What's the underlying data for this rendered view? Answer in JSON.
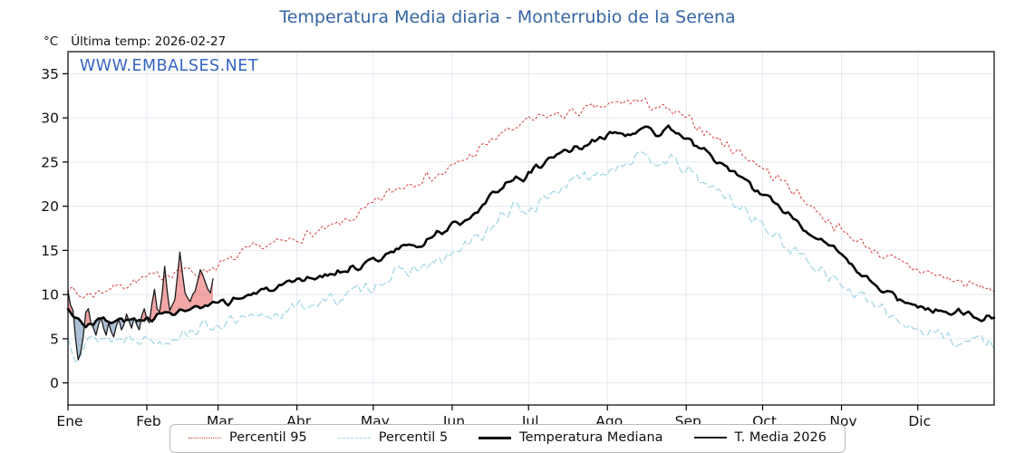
{
  "header": {
    "title": "Temperatura Media diaria - Monterrubio de la Serena",
    "unit": "°C",
    "last_temp": "Última temp: 2026-02-27"
  },
  "watermark": "WWW.EMBALSES.NET",
  "colors": {
    "title": "#3465a4",
    "watermark": "#3465c4",
    "grid": "#e3eaf1",
    "axis": "#000000",
    "fill_above_median": "rgba(232,93,93,0.55)",
    "fill_below_median": "rgba(105,140,180,0.55)"
  },
  "chart_data": {
    "type": "line",
    "title": "Temperatura Media diaria - Monterrubio de la Serena",
    "xlabel": "",
    "ylabel": "°C",
    "ylim": [
      -2.5,
      37.5
    ],
    "y_ticks": [
      0,
      5,
      10,
      15,
      20,
      25,
      30,
      35
    ],
    "x_unit": "day_of_year",
    "x_range_days": [
      1,
      365
    ],
    "x_tick_days": [
      1,
      32,
      60,
      91,
      121,
      152,
      182,
      213,
      244,
      274,
      305,
      335
    ],
    "x_tick_labels": [
      "Ene",
      "Feb",
      "Mar",
      "Abr",
      "May",
      "Jun",
      "Jul",
      "Ago",
      "Sep",
      "Oct",
      "Nov",
      "Dic"
    ],
    "grid": true,
    "legend_position": "bottom",
    "annotation": "Última temp: 2026-02-27",
    "series": [
      {
        "name": "Percentil 95",
        "color": "#d93a3a",
        "line_style": "dotted",
        "days": 365,
        "control_points": [
          [
            1,
            10.8
          ],
          [
            6,
            9.8
          ],
          [
            12,
            10.2
          ],
          [
            18,
            10.8
          ],
          [
            24,
            11.2
          ],
          [
            31,
            11.8
          ],
          [
            38,
            12.2
          ],
          [
            45,
            12.8
          ],
          [
            52,
            12.4
          ],
          [
            59,
            13.2
          ],
          [
            66,
            14.0
          ],
          [
            73,
            15.2
          ],
          [
            80,
            15.6
          ],
          [
            87,
            16.0
          ],
          [
            94,
            16.6
          ],
          [
            101,
            17.2
          ],
          [
            108,
            18.0
          ],
          [
            115,
            19.0
          ],
          [
            120,
            20.0
          ],
          [
            127,
            21.5
          ],
          [
            134,
            22.5
          ],
          [
            141,
            23.2
          ],
          [
            148,
            23.6
          ],
          [
            155,
            25.0
          ],
          [
            162,
            26.2
          ],
          [
            169,
            27.8
          ],
          [
            176,
            28.8
          ],
          [
            182,
            29.6
          ],
          [
            189,
            30.2
          ],
          [
            196,
            30.4
          ],
          [
            203,
            30.8
          ],
          [
            210,
            31.2
          ],
          [
            217,
            31.6
          ],
          [
            224,
            32.0
          ],
          [
            228,
            31.6
          ],
          [
            235,
            31.0
          ],
          [
            242,
            30.2
          ],
          [
            249,
            29.0
          ],
          [
            256,
            27.6
          ],
          [
            263,
            26.4
          ],
          [
            270,
            25.2
          ],
          [
            277,
            23.6
          ],
          [
            284,
            22.4
          ],
          [
            291,
            20.6
          ],
          [
            298,
            18.8
          ],
          [
            305,
            17.2
          ],
          [
            312,
            16.0
          ],
          [
            319,
            14.8
          ],
          [
            326,
            13.8
          ],
          [
            333,
            13.0
          ],
          [
            340,
            12.4
          ],
          [
            347,
            11.8
          ],
          [
            354,
            11.2
          ],
          [
            360,
            10.8
          ],
          [
            365,
            10.6
          ]
        ]
      },
      {
        "name": "Percentil 5",
        "color": "#a5d8e6",
        "line_style": "dashed",
        "days": 365,
        "control_points": [
          [
            1,
            5.2
          ],
          [
            4,
            3.2
          ],
          [
            8,
            4.6
          ],
          [
            14,
            5.2
          ],
          [
            20,
            4.8
          ],
          [
            26,
            5.4
          ],
          [
            31,
            5.0
          ],
          [
            38,
            4.6
          ],
          [
            45,
            5.6
          ],
          [
            52,
            6.2
          ],
          [
            59,
            6.6
          ],
          [
            66,
            6.9
          ],
          [
            73,
            7.2
          ],
          [
            80,
            7.6
          ],
          [
            87,
            8.2
          ],
          [
            94,
            8.8
          ],
          [
            101,
            9.2
          ],
          [
            108,
            9.6
          ],
          [
            115,
            10.4
          ],
          [
            122,
            11.2
          ],
          [
            129,
            12.2
          ],
          [
            136,
            12.8
          ],
          [
            143,
            13.2
          ],
          [
            150,
            14.2
          ],
          [
            157,
            15.4
          ],
          [
            164,
            16.8
          ],
          [
            171,
            18.6
          ],
          [
            176,
            19.8
          ],
          [
            182,
            19.4
          ],
          [
            189,
            21.0
          ],
          [
            196,
            22.4
          ],
          [
            203,
            23.2
          ],
          [
            210,
            23.8
          ],
          [
            217,
            24.6
          ],
          [
            224,
            25.6
          ],
          [
            229,
            25.0
          ],
          [
            236,
            25.4
          ],
          [
            243,
            24.2
          ],
          [
            250,
            22.8
          ],
          [
            257,
            21.6
          ],
          [
            264,
            20.2
          ],
          [
            271,
            18.6
          ],
          [
            278,
            16.8
          ],
          [
            285,
            15.2
          ],
          [
            292,
            13.8
          ],
          [
            299,
            12.6
          ],
          [
            306,
            10.8
          ],
          [
            313,
            9.6
          ],
          [
            320,
            8.4
          ],
          [
            327,
            7.2
          ],
          [
            334,
            6.2
          ],
          [
            341,
            5.6
          ],
          [
            348,
            5.2
          ],
          [
            353,
            4.2
          ],
          [
            358,
            5.4
          ],
          [
            365,
            4.0
          ]
        ]
      },
      {
        "name": "Temperatura Mediana",
        "color": "#000000",
        "line_style": "solid-thick",
        "days": 365,
        "control_points": [
          [
            1,
            8.6
          ],
          [
            4,
            7.4
          ],
          [
            8,
            6.6
          ],
          [
            13,
            7.2
          ],
          [
            18,
            6.8
          ],
          [
            23,
            7.2
          ],
          [
            28,
            6.9
          ],
          [
            31,
            7.3
          ],
          [
            38,
            7.7
          ],
          [
            45,
            8.1
          ],
          [
            52,
            8.4
          ],
          [
            59,
            8.8
          ],
          [
            66,
            9.4
          ],
          [
            73,
            10.0
          ],
          [
            80,
            10.6
          ],
          [
            87,
            11.0
          ],
          [
            94,
            11.6
          ],
          [
            101,
            12.1
          ],
          [
            108,
            12.6
          ],
          [
            115,
            13.2
          ],
          [
            122,
            14.0
          ],
          [
            129,
            14.8
          ],
          [
            134,
            15.8
          ],
          [
            139,
            15.4
          ],
          [
            145,
            16.8
          ],
          [
            150,
            17.6
          ],
          [
            155,
            18.2
          ],
          [
            160,
            19.2
          ],
          [
            165,
            20.4
          ],
          [
            170,
            21.8
          ],
          [
            175,
            23.2
          ],
          [
            180,
            23.0
          ],
          [
            185,
            24.6
          ],
          [
            190,
            25.2
          ],
          [
            196,
            26.0
          ],
          [
            203,
            26.8
          ],
          [
            210,
            27.6
          ],
          [
            215,
            28.2
          ],
          [
            222,
            28.0
          ],
          [
            227,
            28.8
          ],
          [
            232,
            28.2
          ],
          [
            237,
            28.8
          ],
          [
            243,
            27.8
          ],
          [
            249,
            26.6
          ],
          [
            255,
            25.4
          ],
          [
            261,
            24.2
          ],
          [
            267,
            22.6
          ],
          [
            273,
            21.6
          ],
          [
            279,
            20.4
          ],
          [
            285,
            19.0
          ],
          [
            291,
            17.4
          ],
          [
            297,
            16.2
          ],
          [
            303,
            14.8
          ],
          [
            309,
            13.2
          ],
          [
            315,
            11.8
          ],
          [
            321,
            10.6
          ],
          [
            327,
            9.6
          ],
          [
            333,
            8.8
          ],
          [
            339,
            8.4
          ],
          [
            345,
            8.0
          ],
          [
            351,
            8.3
          ],
          [
            357,
            7.6
          ],
          [
            362,
            7.4
          ],
          [
            365,
            7.8
          ]
        ]
      },
      {
        "name": "T. Media 2026",
        "color": "#1c1c1c",
        "line_style": "solid-thin",
        "days": 58,
        "control_points": [
          [
            1,
            10.4
          ],
          [
            2,
            8.8
          ],
          [
            3,
            8.2
          ],
          [
            4,
            5.0
          ],
          [
            5,
            2.6
          ],
          [
            6,
            3.4
          ],
          [
            7,
            5.2
          ],
          [
            8,
            8.0
          ],
          [
            9,
            8.4
          ],
          [
            10,
            6.8
          ],
          [
            11,
            6.2
          ],
          [
            12,
            5.4
          ],
          [
            13,
            6.6
          ],
          [
            14,
            7.4
          ],
          [
            15,
            6.2
          ],
          [
            16,
            5.4
          ],
          [
            17,
            6.8
          ],
          [
            18,
            5.8
          ],
          [
            19,
            5.2
          ],
          [
            20,
            6.4
          ],
          [
            21,
            7.2
          ],
          [
            22,
            6.0
          ],
          [
            23,
            6.6
          ],
          [
            24,
            7.8
          ],
          [
            25,
            7.0
          ],
          [
            26,
            6.2
          ],
          [
            27,
            7.4
          ],
          [
            28,
            6.6
          ],
          [
            29,
            6.0
          ],
          [
            30,
            7.6
          ],
          [
            31,
            8.4
          ],
          [
            32,
            7.2
          ],
          [
            33,
            6.8
          ],
          [
            34,
            9.0
          ],
          [
            35,
            10.6
          ],
          [
            36,
            8.4
          ],
          [
            37,
            8.0
          ],
          [
            38,
            10.0
          ],
          [
            39,
            13.2
          ],
          [
            40,
            10.4
          ],
          [
            41,
            8.2
          ],
          [
            42,
            8.8
          ],
          [
            43,
            9.4
          ],
          [
            44,
            12.0
          ],
          [
            45,
            14.8
          ],
          [
            46,
            12.4
          ],
          [
            47,
            10.2
          ],
          [
            48,
            9.6
          ],
          [
            49,
            9.2
          ],
          [
            50,
            10.0
          ],
          [
            51,
            10.4
          ],
          [
            52,
            11.6
          ],
          [
            53,
            12.8
          ],
          [
            54,
            12.2
          ],
          [
            55,
            11.4
          ],
          [
            56,
            10.6
          ],
          [
            57,
            10.2
          ],
          [
            58,
            11.8
          ]
        ]
      }
    ]
  }
}
